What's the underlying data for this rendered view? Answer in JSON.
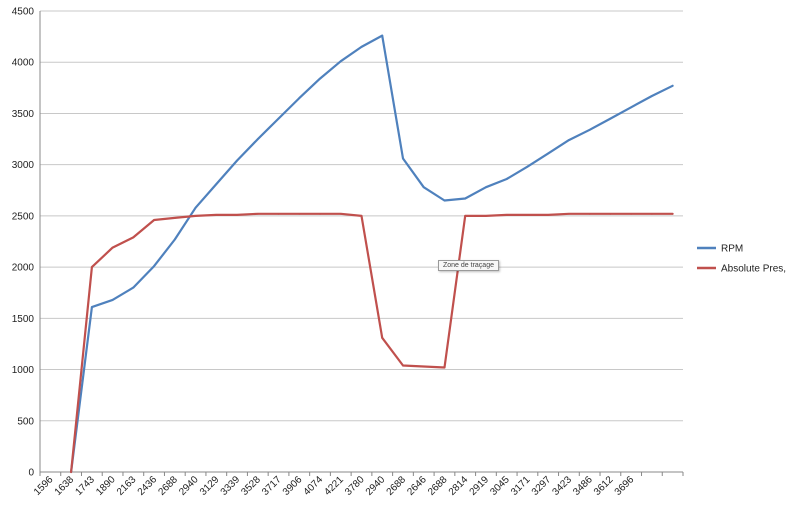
{
  "chart_data": {
    "type": "line",
    "categories": [
      "1596",
      "1638",
      "1743",
      "1890",
      "2163",
      "2436",
      "2688",
      "2940",
      "3129",
      "3339",
      "3528",
      "3717",
      "3906",
      "4074",
      "4221",
      "3780",
      "2940",
      "2688",
      "2646",
      "2688",
      "2814",
      "2919",
      "3045",
      "3171",
      "3297",
      "3423",
      "3486",
      "3612",
      "3696",
      "",
      ""
    ],
    "series": [
      {
        "name": "RPM",
        "color": "#4f81bd",
        "values": [
          null,
          0,
          1610,
          1680,
          1800,
          2010,
          2270,
          2580,
          2810,
          3040,
          3250,
          3450,
          3650,
          3840,
          4010,
          4150,
          4260,
          3060,
          2780,
          2650,
          2670,
          2780,
          2860,
          2980,
          3110,
          3240,
          3340,
          3450,
          3560,
          3670,
          3770
        ]
      },
      {
        "name": "Absolute Pres,",
        "color": "#c0504d",
        "values": [
          null,
          0,
          2000,
          2190,
          2290,
          2460,
          2480,
          2500,
          2510,
          2510,
          2520,
          2520,
          2520,
          2520,
          2520,
          2500,
          1310,
          1040,
          1030,
          1020,
          2500,
          2500,
          2510,
          2510,
          2510,
          2520,
          2520,
          2520,
          2520,
          2520,
          2520
        ]
      }
    ],
    "yticks": [
      "0",
      "500",
      "1000",
      "1500",
      "2000",
      "2500",
      "3000",
      "3500",
      "4000",
      "4500"
    ],
    "ylim": [
      0,
      4500
    ],
    "grid": true,
    "legend": "right"
  },
  "tooltip": {
    "text": "Zone de traçage"
  }
}
